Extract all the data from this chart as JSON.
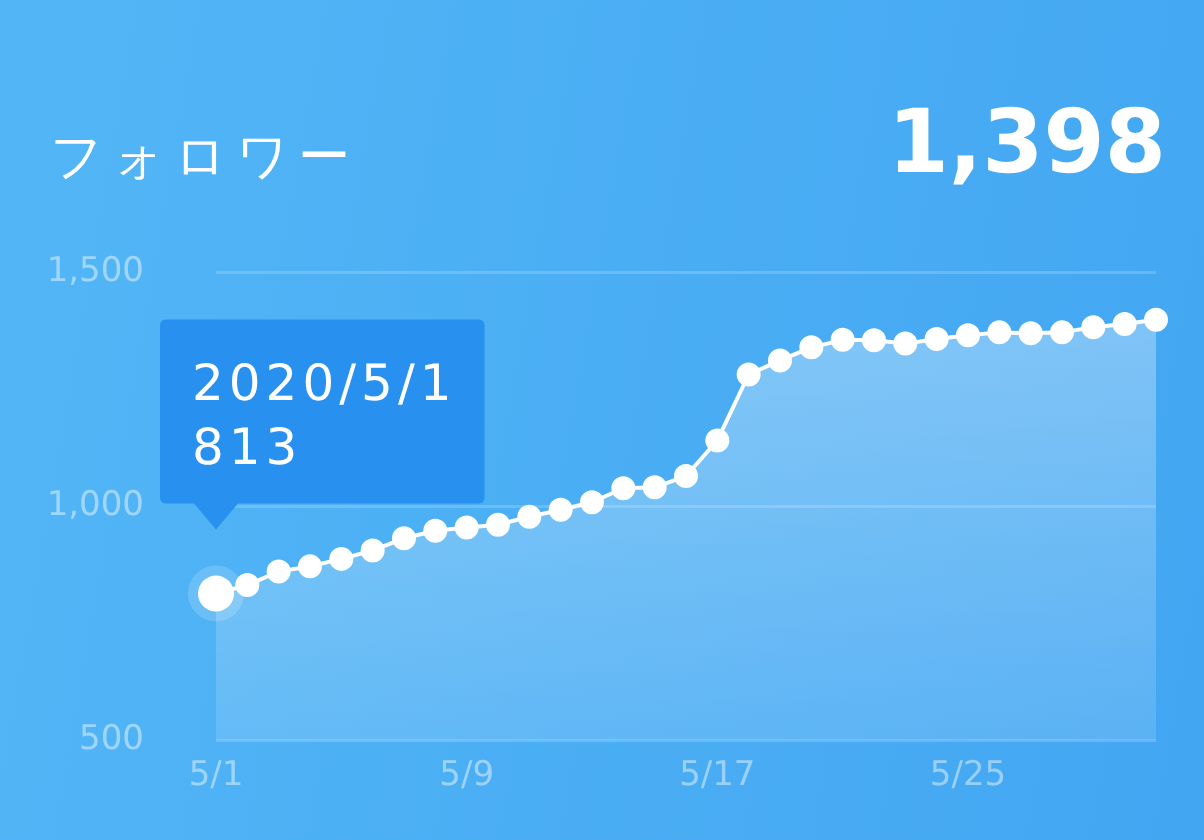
{
  "chart_data": {
    "type": "area",
    "title": "フォロワー",
    "subtitle": "1,398",
    "categories": [
      "5/1",
      null,
      null,
      null,
      null,
      null,
      null,
      null,
      "5/9",
      null,
      null,
      null,
      null,
      null,
      null,
      null,
      "5/17",
      null,
      null,
      null,
      null,
      null,
      null,
      null,
      "5/25",
      null,
      null,
      null,
      null,
      null,
      null
    ],
    "values": [
      813,
      831,
      860,
      871,
      887,
      905,
      931,
      947,
      954,
      960,
      977,
      992,
      1008,
      1038,
      1040,
      1064,
      1140,
      1281,
      1311,
      1339,
      1355,
      1354,
      1347,
      1357,
      1365,
      1371,
      1369,
      1371,
      1382,
      1389,
      1398
    ],
    "color": "#ffffff",
    "value_labels": [
      "813",
      null,
      null,
      null,
      null,
      null,
      null,
      null,
      null,
      null,
      null,
      null,
      null,
      null,
      null,
      null,
      null,
      null,
      null,
      null,
      null,
      null,
      null,
      null,
      null,
      null,
      null,
      null,
      null,
      null,
      null
    ],
    "annotations": [
      "2020/5/1"
    ],
    "ylim": [
      500,
      1500
    ],
    "yticks": [
      500,
      {
        "value": 1000,
        "label": "1,000"
      },
      {
        "value": 1500,
        "label": "1,500"
      }
    ],
    "grid": "y",
    "legend": false,
    "marker": "circle",
    "line_style": "solid"
  }
}
